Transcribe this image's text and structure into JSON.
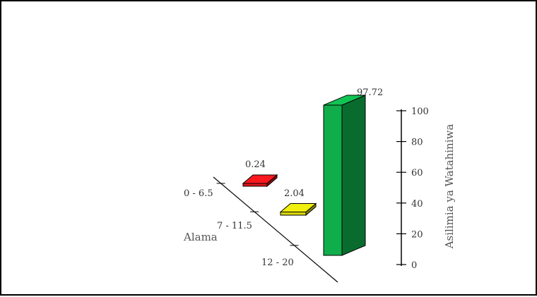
{
  "chart_data": {
    "type": "bar",
    "title": "",
    "xlabel": "Alama",
    "ylabel": "Asilimia ya Watahiniwa",
    "categories": [
      "0 - 6.5",
      "7 - 11.5",
      "12 - 20"
    ],
    "values": [
      0.24,
      2.04,
      97.72
    ],
    "value_labels": [
      "0.24",
      "2.04",
      "97.72"
    ],
    "ylim": [
      0,
      100
    ],
    "yticks": [
      0,
      20,
      40,
      60,
      80,
      100
    ],
    "colors": [
      "#e0161b",
      "#d6d50c",
      "#0fae4a"
    ],
    "three_d": true,
    "grid": false
  }
}
